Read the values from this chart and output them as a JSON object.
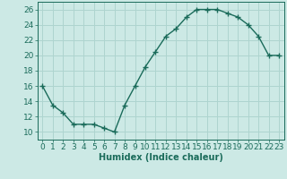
{
  "title": "",
  "xlabel": "Humidex (Indice chaleur)",
  "ylabel": "",
  "x": [
    0,
    1,
    2,
    3,
    4,
    5,
    6,
    7,
    8,
    9,
    10,
    11,
    12,
    13,
    14,
    15,
    16,
    17,
    18,
    19,
    20,
    21,
    22,
    23
  ],
  "y": [
    16,
    13.5,
    12.5,
    11,
    11,
    11,
    10.5,
    10,
    13.5,
    16,
    18.5,
    20.5,
    22.5,
    23.5,
    25,
    26,
    26,
    26,
    25.5,
    25,
    24,
    22.5,
    20,
    20
  ],
  "line_color": "#1a6b5a",
  "marker": "+",
  "marker_size": 4,
  "marker_linewidth": 1.0,
  "line_width": 1.0,
  "background_color": "#cce9e5",
  "grid_color": "#aed4cf",
  "tick_label_color": "#1a6b5a",
  "axis_label_color": "#1a6b5a",
  "spine_color": "#1a6b5a",
  "xlim": [
    -0.5,
    23.5
  ],
  "ylim": [
    9,
    27
  ],
  "yticks": [
    10,
    12,
    14,
    16,
    18,
    20,
    22,
    24,
    26
  ],
  "xticks": [
    0,
    1,
    2,
    3,
    4,
    5,
    6,
    7,
    8,
    9,
    10,
    11,
    12,
    13,
    14,
    15,
    16,
    17,
    18,
    19,
    20,
    21,
    22,
    23
  ],
  "xlabel_fontsize": 7,
  "tick_fontsize": 6.5,
  "xlabel_fontweight": "bold"
}
